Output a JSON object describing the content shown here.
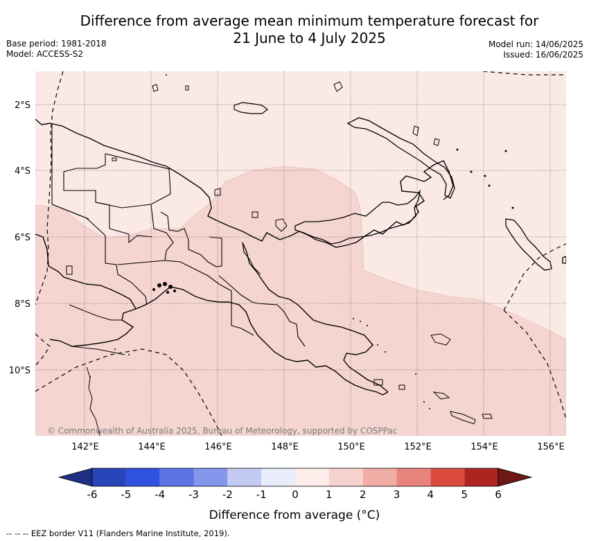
{
  "header": {
    "title_line1": "Difference from average mean minimum temperature forecast for",
    "title_line2": "21 June to 4 July 2025",
    "base_period": "Base period: 1981-2018",
    "model": "Model: ACCESS-S2",
    "model_run": "Model run: 14/06/2025",
    "issued": "Issued: 16/06/2025"
  },
  "map": {
    "lat_labels": [
      "2°S",
      "4°S",
      "6°S",
      "8°S",
      "10°S"
    ],
    "lon_labels": [
      "142°E",
      "144°E",
      "146°E",
      "148°E",
      "150°E",
      "152°E",
      "154°E",
      "156°E"
    ],
    "copyright": "© Commonwealth of Australia 2025, Bureau of Meteorology, supported by COSPPac",
    "colors": {
      "anomaly_0_to_1": "#fbe9e6",
      "anomaly_1_to_2": "#f5d5d0",
      "land_outline": "#000000",
      "gridline": "#555555"
    }
  },
  "legend": {
    "tick_labels": [
      "-6",
      "-5",
      "-4",
      "-3",
      "-2",
      "-1",
      "0",
      "1",
      "2",
      "3",
      "4",
      "5",
      "6"
    ],
    "colors": [
      "#1c2f85",
      "#2a44b9",
      "#3050e0",
      "#5a74e6",
      "#8597ec",
      "#c3cbf5",
      "#e9ecfb",
      "#fdece9",
      "#f6d3ce",
      "#f0aea6",
      "#e8847b",
      "#db4c3f",
      "#ae2520",
      "#6e1714"
    ],
    "label": "Difference from average (°C)"
  },
  "footnote": "-- -- -- EEZ border V11 (Flanders Marine Institute, 2019)."
}
